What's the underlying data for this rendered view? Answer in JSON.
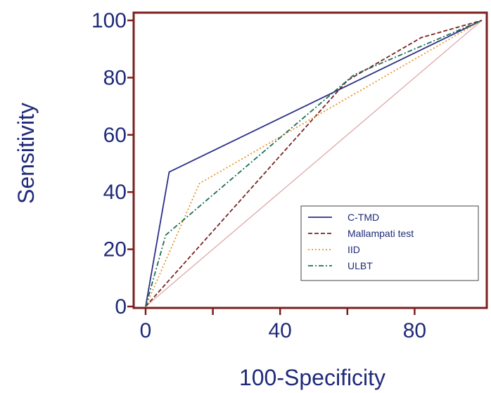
{
  "chart_data": {
    "type": "line",
    "xlabel": "100-Specificity",
    "ylabel": "Sensitivity",
    "xlim": [
      0,
      100
    ],
    "ylim": [
      0,
      100
    ],
    "x_ticks": [
      "0",
      "40",
      "80"
    ],
    "x_tick_values": [
      0,
      40,
      80
    ],
    "y_ticks": [
      "0",
      "20",
      "40",
      "60",
      "80",
      "100"
    ],
    "y_tick_values": [
      0,
      20,
      40,
      60,
      80,
      100
    ],
    "minor_x_ticks": [
      20,
      60
    ],
    "legend_position": "bottom-right",
    "frame_color": "#7a1f1f",
    "text_color": "#1f2a7a",
    "series": [
      {
        "name": "C-TMD",
        "color": "#2a2f88",
        "dash": "solid",
        "points": [
          [
            0,
            0
          ],
          [
            7,
            47
          ],
          [
            100,
            100
          ]
        ]
      },
      {
        "name": "Mallampati test",
        "color": "#7a2222",
        "dash": "dashed",
        "points": [
          [
            0,
            0
          ],
          [
            60,
            79
          ],
          [
            82,
            94
          ],
          [
            100,
            100
          ]
        ]
      },
      {
        "name": "IID",
        "color": "#e8942a",
        "dash": "dotted",
        "points": [
          [
            0,
            0
          ],
          [
            16,
            43
          ],
          [
            100,
            100
          ]
        ]
      },
      {
        "name": "ULBT",
        "color": "#1a6e55",
        "dash": "dashdot",
        "points": [
          [
            0,
            0
          ],
          [
            6,
            25
          ],
          [
            62,
            81
          ],
          [
            100,
            100
          ]
        ]
      }
    ],
    "reference_line": {
      "color": "#e0a8a8",
      "points": [
        [
          0,
          0
        ],
        [
          100,
          100
        ]
      ]
    }
  }
}
